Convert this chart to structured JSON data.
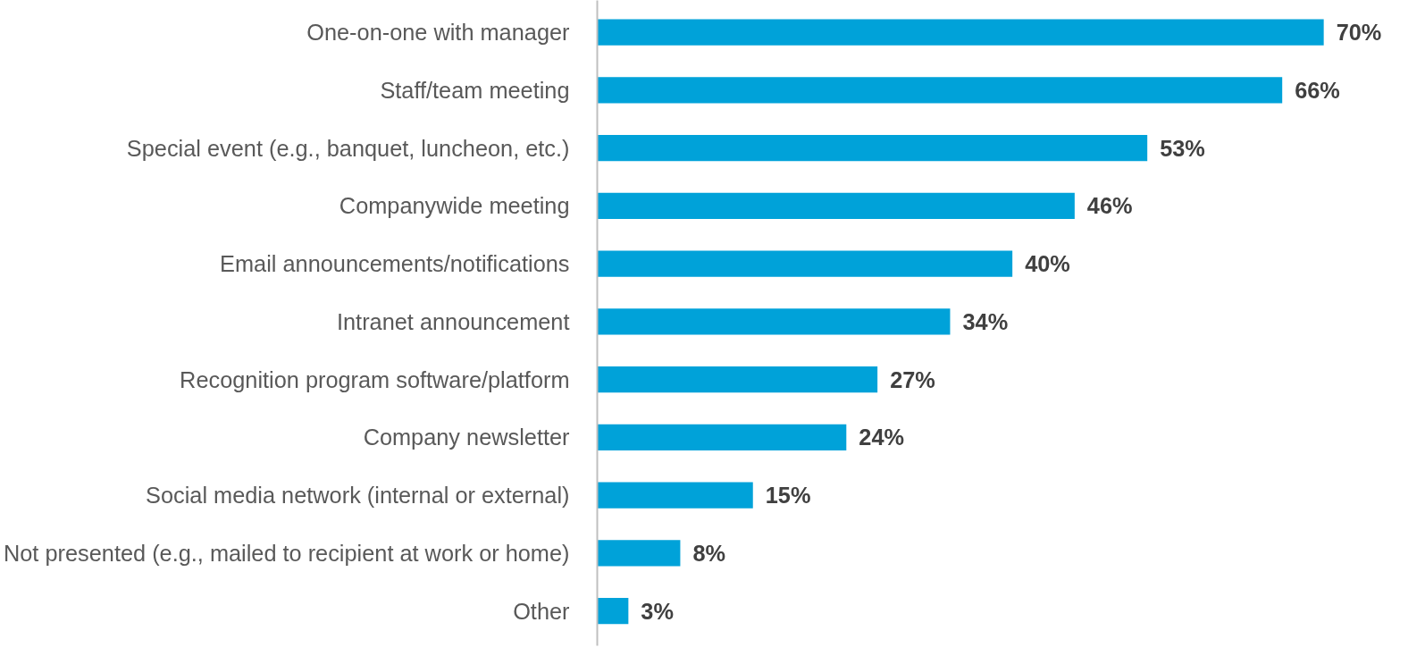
{
  "chart_data": {
    "type": "bar",
    "orientation": "horizontal",
    "categories": [
      "One-on-one with manager",
      "Staff/team meeting",
      "Special event (e.g., banquet, luncheon, etc.)",
      "Companywide meeting",
      "Email announcements/notifications",
      "Intranet announcement",
      "Recognition program software/platform",
      "Company newsletter",
      "Social media network (internal or external)",
      "Not presented (e.g., mailed to recipient at work or home)",
      "Other"
    ],
    "values": [
      70,
      66,
      53,
      46,
      40,
      34,
      27,
      24,
      15,
      8,
      3
    ],
    "value_labels": [
      "70%",
      "66%",
      "53%",
      "46%",
      "40%",
      "34%",
      "27%",
      "24%",
      "15%",
      "8%",
      "3%"
    ],
    "color": "#00a2d9",
    "tick_labels": "y",
    "grid": false
  }
}
